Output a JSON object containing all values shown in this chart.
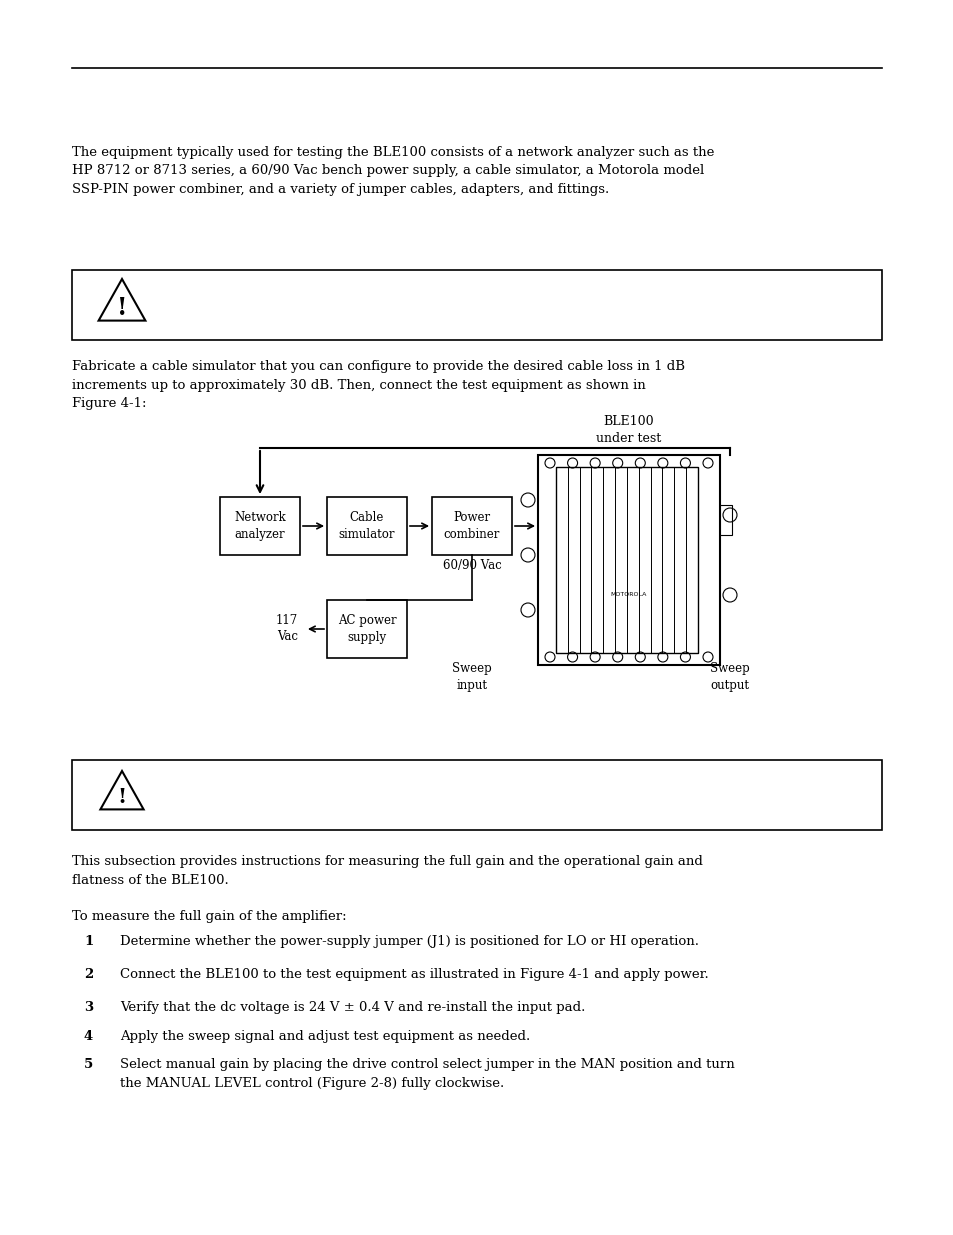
{
  "bg_color": "#ffffff",
  "text_color": "#000000",
  "line_color": "#000000",
  "para1": "The equipment typically used for testing the BLE100 consists of a network analyzer such as the\nHP 8712 or 8713 series, a 60/90 Vac bench power supply, a cable simulator, a Motorola model\nSSP-PIN power combiner, and a variety of jumper cables, adapters, and fittings.",
  "para2": "Fabricate a cable simulator that you can configure to provide the desired cable loss in 1 dB\nincrements up to approximately 30 dB. Then, connect the test equipment as shown in\nFigure 4-1:",
  "para3": "This subsection provides instructions for measuring the full gain and the operational gain and\nflatness of the BLE100.",
  "para4": "To measure the full gain of the amplifier:",
  "steps": [
    {
      "num": "1",
      "text": "Determine whether the power-supply jumper (J1) is positioned for LO or HI operation."
    },
    {
      "num": "2",
      "text": "Connect the BLE100 to the test equipment as illustrated in Figure 4-1 and apply power."
    },
    {
      "num": "3",
      "text": "Verify that the dc voltage is 24 V ± 0.4 V and re-install the input pad."
    },
    {
      "num": "4",
      "text": "Apply the sweep signal and adjust test equipment as needed."
    },
    {
      "num": "5",
      "text": "Select manual gain by placing the drive control select jumper in the MAN position and turn\nthe MANUAL LEVEL control (Figure 2-8) fully clockwise."
    }
  ],
  "font_size_body": 9.5,
  "font_size_step": 9.5
}
